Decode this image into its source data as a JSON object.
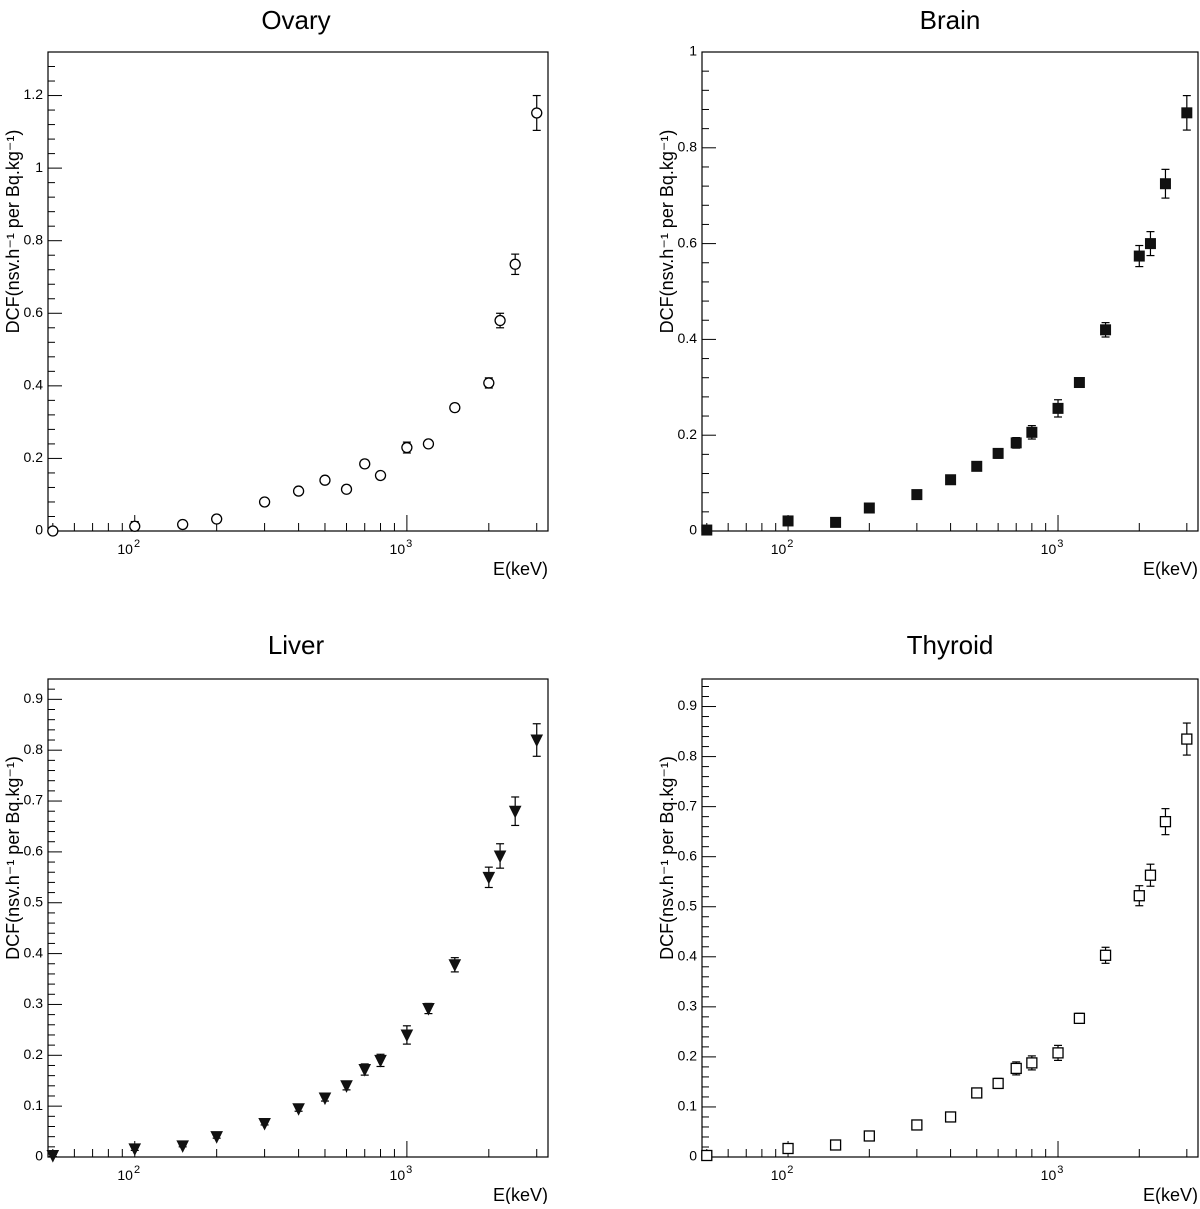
{
  "chart_data": [
    {
      "type": "scatter",
      "title": "Ovary",
      "xlabel": "E(keV)",
      "ylabel": "DCF(nsv.h⁻¹ per Bq.kg⁻¹)",
      "xscale": "log",
      "xlim": [
        48,
        3300
      ],
      "ylim": [
        0,
        1.32
      ],
      "marker": "open-circle",
      "yticks": [
        0,
        0.2,
        0.4,
        0.6,
        0.8,
        1,
        1.2
      ],
      "ytick_labels": [
        "0",
        "0.2",
        "0.4",
        "0.6",
        "0.8",
        "1",
        "1.2"
      ],
      "xtick_labels": [
        "10",
        "10"
      ],
      "xtick_exponents": [
        "2",
        "3"
      ],
      "points": [
        {
          "x": 50,
          "y": 0.0,
          "err": 0.004
        },
        {
          "x": 100,
          "y": 0.013,
          "err": 0.013
        },
        {
          "x": 150,
          "y": 0.018,
          "err": 0.003
        },
        {
          "x": 200,
          "y": 0.033,
          "err": 0.003
        },
        {
          "x": 300,
          "y": 0.08,
          "err": 0.004
        },
        {
          "x": 400,
          "y": 0.11,
          "err": 0.005
        },
        {
          "x": 500,
          "y": 0.14,
          "err": 0.007
        },
        {
          "x": 600,
          "y": 0.115,
          "err": 0.006
        },
        {
          "x": 700,
          "y": 0.185,
          "err": 0.01
        },
        {
          "x": 800,
          "y": 0.153,
          "err": 0.008
        },
        {
          "x": 1000,
          "y": 0.23,
          "err": 0.015
        },
        {
          "x": 1200,
          "y": 0.24,
          "err": 0.008
        },
        {
          "x": 1500,
          "y": 0.34,
          "err": 0.01
        },
        {
          "x": 2000,
          "y": 0.408,
          "err": 0.014
        },
        {
          "x": 2200,
          "y": 0.58,
          "err": 0.02
        },
        {
          "x": 2500,
          "y": 0.735,
          "err": 0.028
        },
        {
          "x": 3000,
          "y": 1.152,
          "err": 0.048
        }
      ]
    },
    {
      "type": "scatter",
      "title": "Brain",
      "xlabel": "E(keV)",
      "ylabel": "DCF(nsv.h⁻¹ per Bq.kg⁻¹)",
      "xscale": "log",
      "xlim": [
        48,
        3300
      ],
      "ylim": [
        0,
        1.0
      ],
      "marker": "filled-square",
      "yticks": [
        0,
        0.2,
        0.4,
        0.6,
        0.8,
        1
      ],
      "ytick_labels": [
        "0",
        "0.2",
        "0.4",
        "0.6",
        "0.8",
        "1"
      ],
      "xtick_labels": [
        "10",
        "10"
      ],
      "xtick_exponents": [
        "2",
        "3"
      ],
      "points": [
        {
          "x": 50,
          "y": 0.002,
          "err": 0.002
        },
        {
          "x": 100,
          "y": 0.021,
          "err": 0.003
        },
        {
          "x": 150,
          "y": 0.018,
          "err": 0.002
        },
        {
          "x": 200,
          "y": 0.048,
          "err": 0.003
        },
        {
          "x": 300,
          "y": 0.076,
          "err": 0.003
        },
        {
          "x": 400,
          "y": 0.107,
          "err": 0.004
        },
        {
          "x": 500,
          "y": 0.135,
          "err": 0.008
        },
        {
          "x": 600,
          "y": 0.162,
          "err": 0.01
        },
        {
          "x": 700,
          "y": 0.184,
          "err": 0.011
        },
        {
          "x": 800,
          "y": 0.206,
          "err": 0.014
        },
        {
          "x": 1000,
          "y": 0.256,
          "err": 0.018
        },
        {
          "x": 1200,
          "y": 0.31,
          "err": 0.01
        },
        {
          "x": 1500,
          "y": 0.42,
          "err": 0.015
        },
        {
          "x": 2000,
          "y": 0.574,
          "err": 0.022
        },
        {
          "x": 2200,
          "y": 0.6,
          "err": 0.025
        },
        {
          "x": 2500,
          "y": 0.725,
          "err": 0.03
        },
        {
          "x": 3000,
          "y": 0.873,
          "err": 0.036
        }
      ]
    },
    {
      "type": "scatter",
      "title": "Liver",
      "xlabel": "E(keV)",
      "ylabel": "DCF(nsv.h⁻¹ per Bq.kg⁻¹)",
      "xscale": "log",
      "xlim": [
        48,
        3300
      ],
      "ylim": [
        0,
        0.94
      ],
      "marker": "filled-down-triangle",
      "yticks": [
        0,
        0.1,
        0.2,
        0.3,
        0.4,
        0.5,
        0.6,
        0.7,
        0.8,
        0.9
      ],
      "ytick_labels": [
        "0",
        "0.1",
        "0.2",
        "0.3",
        "0.4",
        "0.5",
        "0.6",
        "0.7",
        "0.8",
        "0.9"
      ],
      "xtick_labels": [
        "10",
        "10"
      ],
      "xtick_exponents": [
        "2",
        "3"
      ],
      "points": [
        {
          "x": 50,
          "y": 0.003,
          "err": 0.002
        },
        {
          "x": 100,
          "y": 0.016,
          "err": 0.003
        },
        {
          "x": 150,
          "y": 0.022,
          "err": 0.002
        },
        {
          "x": 200,
          "y": 0.04,
          "err": 0.003
        },
        {
          "x": 300,
          "y": 0.066,
          "err": 0.003
        },
        {
          "x": 400,
          "y": 0.095,
          "err": 0.005
        },
        {
          "x": 500,
          "y": 0.116,
          "err": 0.006
        },
        {
          "x": 600,
          "y": 0.14,
          "err": 0.008
        },
        {
          "x": 700,
          "y": 0.172,
          "err": 0.011
        },
        {
          "x": 800,
          "y": 0.19,
          "err": 0.012
        },
        {
          "x": 1000,
          "y": 0.24,
          "err": 0.018
        },
        {
          "x": 1200,
          "y": 0.292,
          "err": 0.01
        },
        {
          "x": 1500,
          "y": 0.378,
          "err": 0.014
        },
        {
          "x": 2000,
          "y": 0.55,
          "err": 0.02
        },
        {
          "x": 2200,
          "y": 0.592,
          "err": 0.024
        },
        {
          "x": 2500,
          "y": 0.68,
          "err": 0.028
        },
        {
          "x": 3000,
          "y": 0.82,
          "err": 0.032
        }
      ]
    },
    {
      "type": "scatter",
      "title": "Thyroid",
      "xlabel": "E(keV)",
      "ylabel": "DCF(nsv.h⁻¹ per Bq.kg⁻¹)",
      "xscale": "log",
      "xlim": [
        48,
        3300
      ],
      "ylim": [
        0,
        0.955
      ],
      "marker": "open-square",
      "yticks": [
        0,
        0.1,
        0.2,
        0.3,
        0.4,
        0.5,
        0.6,
        0.7,
        0.8,
        0.9
      ],
      "ytick_labels": [
        "0",
        "0.1",
        "0.2",
        "0.3",
        "0.4",
        "0.5",
        "0.6",
        "0.7",
        "0.8",
        "0.9"
      ],
      "xtick_labels": [
        "10",
        "10"
      ],
      "xtick_exponents": [
        "2",
        "3"
      ],
      "points": [
        {
          "x": 50,
          "y": 0.003,
          "err": 0.002
        },
        {
          "x": 100,
          "y": 0.017,
          "err": 0.003
        },
        {
          "x": 150,
          "y": 0.024,
          "err": 0.002
        },
        {
          "x": 200,
          "y": 0.042,
          "err": 0.003
        },
        {
          "x": 300,
          "y": 0.064,
          "err": 0.003
        },
        {
          "x": 400,
          "y": 0.08,
          "err": 0.004
        },
        {
          "x": 500,
          "y": 0.128,
          "err": 0.006
        },
        {
          "x": 600,
          "y": 0.147,
          "err": 0.01
        },
        {
          "x": 700,
          "y": 0.177,
          "err": 0.013
        },
        {
          "x": 800,
          "y": 0.188,
          "err": 0.014
        },
        {
          "x": 1000,
          "y": 0.208,
          "err": 0.015
        },
        {
          "x": 1200,
          "y": 0.277,
          "err": 0.01
        },
        {
          "x": 1500,
          "y": 0.403,
          "err": 0.016
        },
        {
          "x": 2000,
          "y": 0.522,
          "err": 0.02
        },
        {
          "x": 2200,
          "y": 0.563,
          "err": 0.022
        },
        {
          "x": 2500,
          "y": 0.67,
          "err": 0.026
        },
        {
          "x": 3000,
          "y": 0.835,
          "err": 0.032
        }
      ]
    }
  ]
}
